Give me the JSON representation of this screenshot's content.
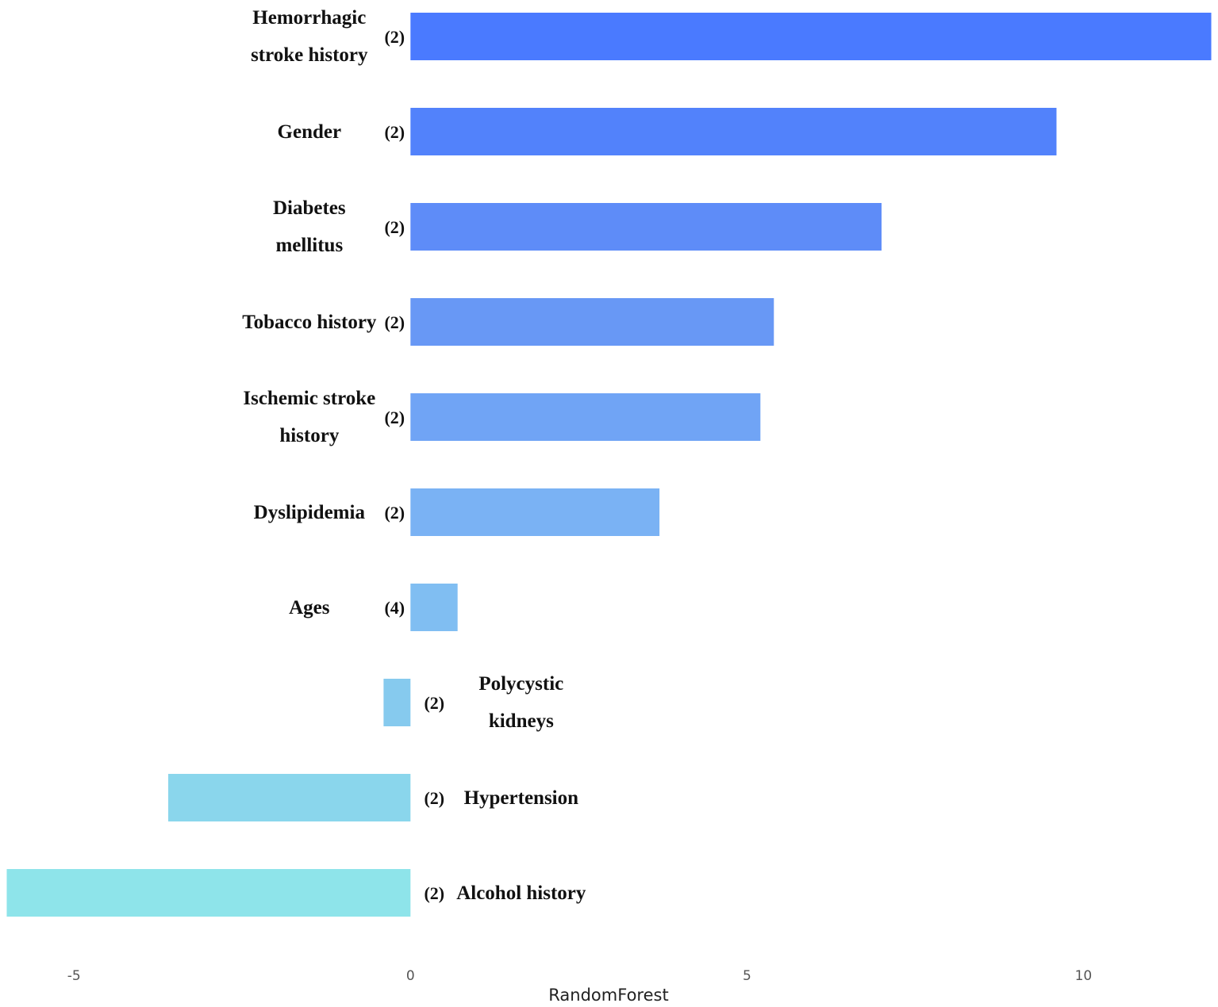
{
  "chart_data": {
    "type": "bar",
    "orientation": "horizontal",
    "categories": [
      "Hemorrhagic stroke history",
      "Gender",
      "Diabetes mellitus",
      "Tobacco history",
      "Ischemic stroke history",
      "Dyslipidemia",
      "Ages",
      "Polycystic kidneys",
      "Hypertension",
      "Alcohol history"
    ],
    "level_labels": [
      "(2)",
      "(2)",
      "(2)",
      "(2)",
      "(2)",
      "(2)",
      "(4)",
      "(2)",
      "(2)",
      "(2)"
    ],
    "values": [
      11.9,
      9.6,
      7.0,
      5.4,
      5.2,
      3.7,
      0.7,
      -0.4,
      -3.6,
      -6.0
    ],
    "colors": [
      "#4a7aff",
      "#5282fb",
      "#5e8cf8",
      "#6898f5",
      "#70a4f5",
      "#7ab2f4",
      "#80bef2",
      "#86caee",
      "#8ad6ec",
      "#8ee4ea"
    ],
    "xlabel": "RandomForest",
    "xlim": [
      -6.1,
      12
    ],
    "xticks": [
      -5,
      0,
      5,
      10
    ],
    "grid": false
  }
}
